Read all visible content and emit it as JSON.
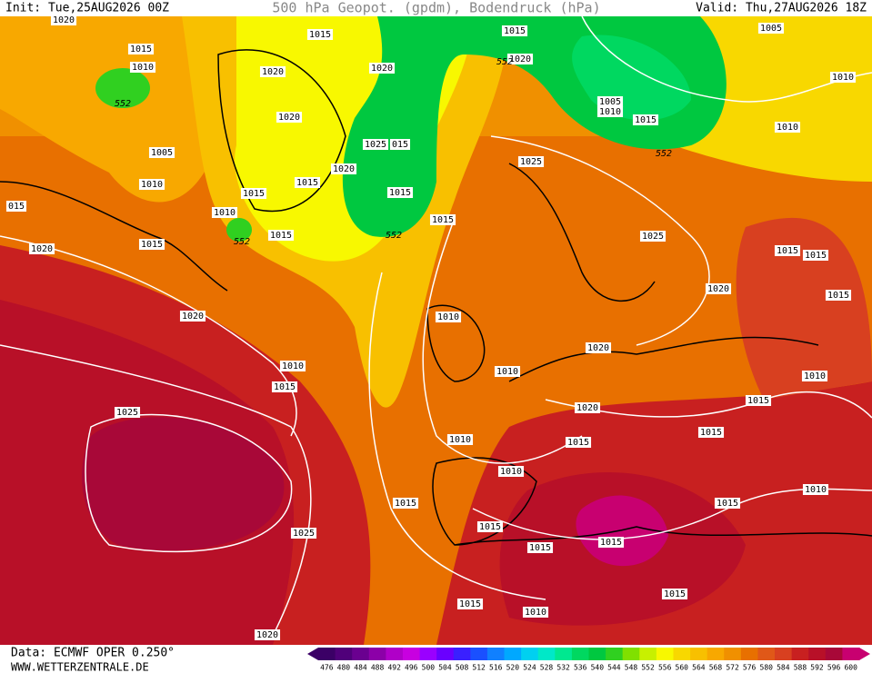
{
  "header": {
    "init": "Init: Tue,25AUG2026 00Z",
    "title": "500 hPa Geopot. (gpdm), Bodendruck (hPa)",
    "valid": "Valid: Thu,27AUG2026 18Z"
  },
  "footer": {
    "source": "Data: ECMWF OPER 0.250°",
    "url": "WWW.WETTERZENTRALE.DE"
  },
  "isobar_labels": [
    "1020",
    "1015",
    "1015",
    "1005",
    "1015",
    "1010",
    "1020",
    "1020",
    "1020",
    "1010",
    "1020",
    "1005",
    "1010",
    "1015",
    "1010",
    "1005",
    "1025",
    "015",
    "1020",
    "1025",
    "1010",
    "1015",
    "1015",
    "1015",
    "015",
    "1010",
    "1015",
    "1015",
    "1015",
    "1025",
    "1020",
    "1015",
    "1015",
    "1020",
    "1015",
    "1010",
    "1020",
    "1020",
    "1010",
    "1010",
    "1010",
    "1015",
    "1015",
    "1020",
    "1025",
    "1015",
    "1015",
    "1010",
    "1010",
    "1010",
    "1015",
    "1015",
    "1015",
    "1025",
    "1015",
    "1015",
    "1015",
    "1015",
    "1010",
    "1020"
  ],
  "contour_labels": [
    "552",
    "552",
    "552",
    "552",
    "552"
  ],
  "legend": {
    "values": [
      476,
      480,
      484,
      488,
      492,
      496,
      500,
      504,
      508,
      512,
      516,
      520,
      524,
      528,
      532,
      536,
      540,
      544,
      548,
      552,
      556,
      560,
      564,
      568,
      572,
      576,
      580,
      584,
      588,
      592,
      596,
      600
    ],
    "colors": [
      "#3b0066",
      "#50007a",
      "#6a0090",
      "#8c00a8",
      "#b000c8",
      "#c800e0",
      "#9a00ff",
      "#6a00ff",
      "#3a20ff",
      "#1a50ff",
      "#1080ff",
      "#00a8ff",
      "#00d0f0",
      "#00e8c8",
      "#00e890",
      "#00d860",
      "#00c840",
      "#30d020",
      "#80e000",
      "#c8f000",
      "#f8f800",
      "#f8d800",
      "#f8c000",
      "#f8a800",
      "#f09000",
      "#e87000",
      "#e05818",
      "#d84020",
      "#c82020",
      "#b81028",
      "#a80838",
      "#c80070"
    ]
  }
}
